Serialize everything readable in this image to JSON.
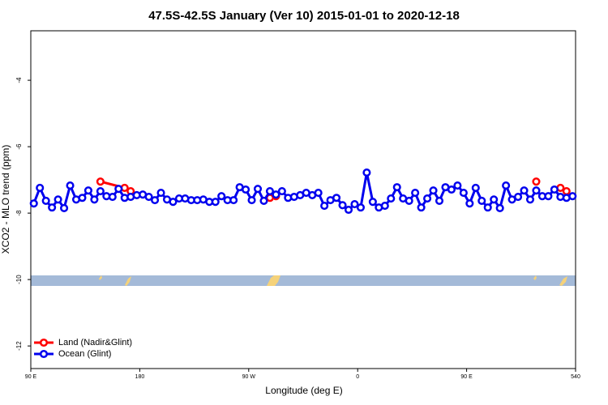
{
  "chart_data": {
    "type": "line",
    "title": "47.5S-42.5S January (Ver 10)   2015-01-01 to 2020-12-18",
    "x_label": "Longitude (deg E)",
    "y_label": "XCO2 - MLO trend (ppm)",
    "xlim": [
      90,
      540
    ],
    "xticks": [
      {
        "value": 90,
        "label": "90 E"
      },
      180,
      {
        "value": 270,
        "label": "90 W"
      },
      {
        "value": 360,
        "label": "0"
      },
      {
        "value": 450,
        "label": "90 E"
      },
      540
    ],
    "ylim": [
      -12.68,
      -2.51
    ],
    "yticks": [
      -4,
      -6,
      -8,
      -10,
      -12
    ],
    "legend": "bottom-left",
    "series": [
      {
        "name": "Land (Nadir&Glint)",
        "color": "#ff0000",
        "x": [
          147.5,
          167.5,
          172.5,
          230,
          287.5,
          292.5,
          400,
          507.5,
          517.5,
          527.5,
          532.5
        ],
        "values": [
          -7.05,
          -7.24,
          -7.34,
          null,
          -7.54,
          -7.49,
          null,
          -7.05,
          null,
          -7.24,
          -7.34
        ]
      },
      {
        "name": "Ocean (Glint)",
        "color": "#0000ee",
        "x": [
          92.5,
          97.5,
          102.5,
          107.5,
          112.5,
          117.5,
          122.5,
          127.5,
          132.5,
          137.5,
          142.5,
          147.5,
          152.5,
          157.5,
          162.5,
          167.5,
          172.5,
          177.5,
          182.5,
          187.5,
          192.5,
          197.5,
          202.5,
          207.5,
          212.5,
          217.5,
          222.5,
          227.5,
          232.5,
          237.5,
          242.5,
          247.5,
          252.5,
          257.5,
          262.5,
          267.5,
          272.5,
          277.5,
          282.5,
          287.5,
          292.5,
          297.5,
          302.5,
          307.5,
          312.5,
          317.5,
          322.5,
          327.5,
          332.5,
          337.5,
          342.5,
          347.5,
          352.5,
          357.5,
          362.5,
          367.5,
          372.5,
          377.5,
          382.5,
          387.5,
          392.5,
          397.5,
          402.5,
          407.5,
          412.5,
          417.5,
          422.5,
          427.5,
          432.5,
          437.5,
          442.5,
          447.5,
          452.5,
          457.5,
          462.5,
          467.5,
          472.5,
          477.5,
          482.5,
          487.5,
          492.5,
          497.5,
          502.5,
          507.5,
          512.5,
          517.5,
          522.5,
          527.5,
          532.5,
          537.5
        ],
        "values": [
          -7.71,
          -7.24,
          -7.63,
          -7.83,
          -7.59,
          -7.85,
          -7.17,
          -7.59,
          -7.54,
          -7.32,
          -7.59,
          -7.34,
          -7.49,
          -7.51,
          -7.27,
          -7.54,
          -7.51,
          -7.46,
          -7.44,
          -7.51,
          -7.61,
          -7.39,
          -7.59,
          -7.66,
          -7.56,
          -7.56,
          -7.61,
          -7.61,
          -7.59,
          -7.66,
          -7.66,
          -7.49,
          -7.61,
          -7.61,
          -7.22,
          -7.29,
          -7.61,
          -7.27,
          -7.63,
          -7.34,
          -7.44,
          -7.34,
          -7.54,
          -7.51,
          -7.46,
          -7.39,
          -7.46,
          -7.39,
          -7.78,
          -7.61,
          -7.54,
          -7.76,
          -7.9,
          -7.73,
          -7.83,
          -6.78,
          -7.66,
          -7.83,
          -7.78,
          -7.56,
          -7.22,
          -7.56,
          -7.63,
          -7.39,
          -7.83,
          -7.56,
          -7.32,
          -7.63,
          -7.22,
          -7.29,
          -7.17,
          -7.39,
          -7.71,
          -7.24,
          -7.63,
          -7.83,
          -7.59,
          -7.85,
          -7.17,
          -7.59,
          -7.51,
          -7.32,
          -7.59,
          -7.32,
          -7.49,
          -7.49,
          -7.29,
          -7.51,
          -7.54,
          -7.49
        ]
      }
    ]
  }
}
